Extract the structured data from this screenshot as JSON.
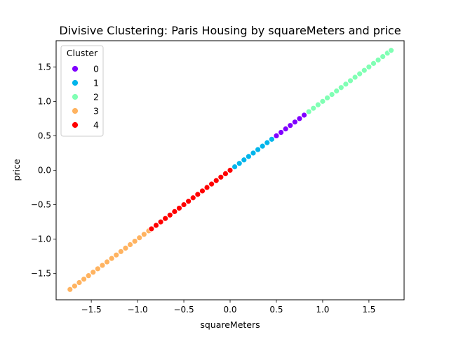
{
  "chart_data": {
    "type": "scatter",
    "title": "Divisive Clustering: Paris Housing by squareMeters and price",
    "xlabel": "squareMeters",
    "ylabel": "price",
    "xlim": [
      -1.88,
      1.88
    ],
    "ylim": [
      -1.88,
      1.88
    ],
    "xticks": [
      -1.5,
      -1.0,
      -0.5,
      0.0,
      0.5,
      1.0,
      1.5
    ],
    "yticks": [
      -1.5,
      -1.0,
      -0.5,
      0.0,
      0.5,
      1.0,
      1.5
    ],
    "xtick_labels": [
      "−1.5",
      "−1.0",
      "−0.5",
      "0.0",
      "0.5",
      "1.0",
      "1.5"
    ],
    "ytick_labels": [
      "−1.5",
      "−1.0",
      "−0.5",
      "0.0",
      "0.5",
      "1.0",
      "1.5"
    ],
    "grid": false,
    "legend": {
      "title": "Cluster",
      "placement": "top-left",
      "entries": [
        "0",
        "1",
        "2",
        "3",
        "4"
      ]
    },
    "series": [
      {
        "name": "0",
        "color": "#8000ff",
        "x": [
          0.45,
          0.5,
          0.55,
          0.6,
          0.65,
          0.7,
          0.75,
          0.8,
          0.85
        ],
        "y": [
          0.45,
          0.5,
          0.55,
          0.6,
          0.65,
          0.7,
          0.75,
          0.8,
          0.85
        ]
      },
      {
        "name": "1",
        "color": "#00b5eb",
        "x": [
          0.0,
          0.05,
          0.1,
          0.15,
          0.2,
          0.25,
          0.3,
          0.35,
          0.4,
          0.45
        ],
        "y": [
          0.0,
          0.05,
          0.1,
          0.15,
          0.2,
          0.25,
          0.3,
          0.35,
          0.4,
          0.45
        ]
      },
      {
        "name": "2",
        "color": "#80ffb4",
        "x": [
          0.85,
          0.9,
          0.95,
          1.0,
          1.05,
          1.1,
          1.15,
          1.2,
          1.25,
          1.3,
          1.35,
          1.4,
          1.45,
          1.5,
          1.55,
          1.6,
          1.65,
          1.7,
          1.74
        ],
        "y": [
          0.85,
          0.9,
          0.95,
          1.0,
          1.05,
          1.1,
          1.15,
          1.2,
          1.25,
          1.3,
          1.35,
          1.4,
          1.45,
          1.5,
          1.55,
          1.6,
          1.65,
          1.7,
          1.74
        ]
      },
      {
        "name": "3",
        "color": "#ffb360",
        "x": [
          -1.73,
          -1.68,
          -1.63,
          -1.58,
          -1.53,
          -1.48,
          -1.43,
          -1.38,
          -1.33,
          -1.28,
          -1.23,
          -1.18,
          -1.13,
          -1.08,
          -1.03,
          -0.98,
          -0.93,
          -0.88
        ],
        "y": [
          -1.73,
          -1.68,
          -1.63,
          -1.58,
          -1.53,
          -1.48,
          -1.43,
          -1.38,
          -1.33,
          -1.28,
          -1.23,
          -1.18,
          -1.13,
          -1.08,
          -1.03,
          -0.98,
          -0.93,
          -0.88
        ]
      },
      {
        "name": "4",
        "color": "#ff0000",
        "x": [
          -0.85,
          -0.8,
          -0.75,
          -0.7,
          -0.65,
          -0.6,
          -0.55,
          -0.5,
          -0.45,
          -0.4,
          -0.35,
          -0.3,
          -0.25,
          -0.2,
          -0.15,
          -0.1,
          -0.05,
          0.0
        ],
        "y": [
          -0.85,
          -0.8,
          -0.75,
          -0.7,
          -0.65,
          -0.6,
          -0.55,
          -0.5,
          -0.45,
          -0.4,
          -0.35,
          -0.3,
          -0.25,
          -0.2,
          -0.15,
          -0.1,
          -0.05,
          0.0
        ]
      }
    ]
  }
}
